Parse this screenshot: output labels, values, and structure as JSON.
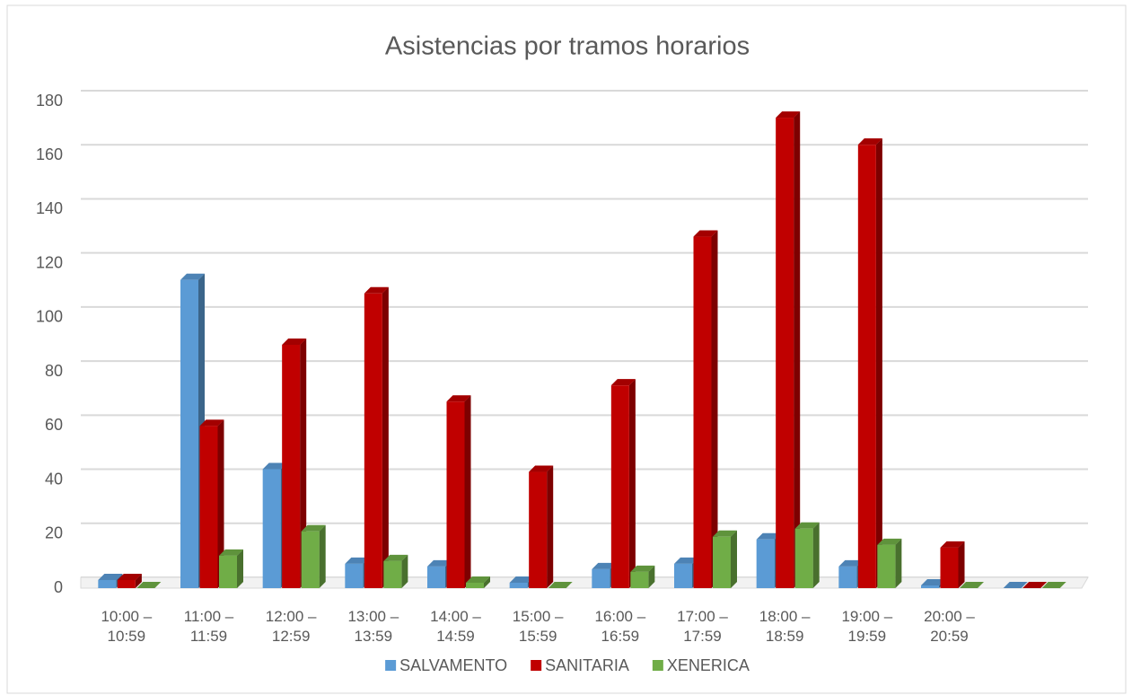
{
  "chart_data": {
    "type": "bar3d",
    "title": "Asistencias por tramos horarios",
    "categories": [
      "10:00 – 10:59",
      "11:00 – 11:59",
      "12:00 – 12:59",
      "13:00 – 13:59",
      "14:00 – 14:59",
      "15:00 – 15:59",
      "16:00 – 16:59",
      "17:00 – 17:59",
      "18:00 – 18:59",
      "19:00 – 19:59",
      "20:00 – 20:59",
      null
    ],
    "series": [
      {
        "name": "SALVAMENTO",
        "color": "#5b9bd5",
        "values": [
          3,
          114,
          44,
          9,
          8,
          2,
          7,
          9,
          18,
          8,
          1,
          0
        ]
      },
      {
        "name": "SANITARIA",
        "color": "#c00000",
        "values": [
          3,
          60,
          90,
          109,
          69,
          43,
          75,
          130,
          174,
          164,
          15,
          0
        ]
      },
      {
        "name": "XENERICA",
        "color": "#70ad47",
        "values": [
          0,
          12,
          21,
          10,
          2,
          0,
          6,
          19,
          22,
          16,
          0,
          0
        ]
      }
    ],
    "ylim": [
      0,
      180
    ],
    "yticks": [
      0,
      20,
      40,
      60,
      80,
      100,
      120,
      140,
      160,
      180
    ],
    "grid": true,
    "legend": "bottom"
  }
}
